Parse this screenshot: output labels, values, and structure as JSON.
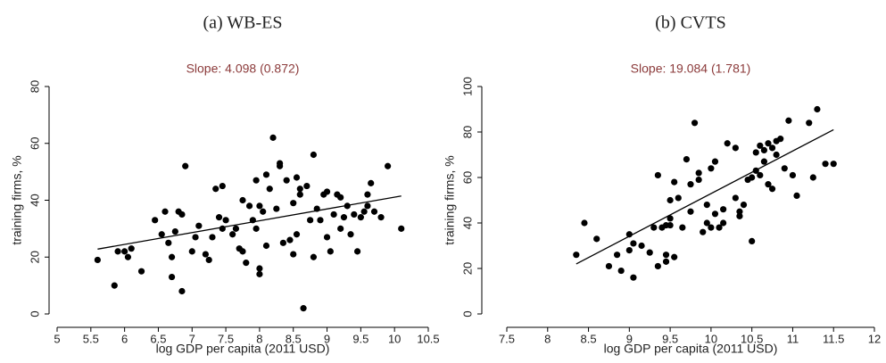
{
  "chart_data": [
    {
      "type": "scatter",
      "title": "(a) WB-ES",
      "subtitle": "Slope: 4.098 (0.872)",
      "xlabel": "log GDP per capita (2011 USD)",
      "ylabel": "training firms, %",
      "color": "#000000",
      "xlim": [
        5,
        10.5
      ],
      "ylim": [
        0,
        80
      ],
      "xticks": [
        5,
        5.5,
        6,
        6.5,
        7,
        7.5,
        8,
        8.5,
        9,
        9.5,
        10,
        10.5
      ],
      "yticks": [
        0,
        20,
        40,
        60,
        80
      ],
      "x": [
        5.6,
        5.85,
        5.9,
        6.0,
        6.05,
        6.1,
        6.25,
        6.45,
        6.55,
        6.6,
        6.65,
        6.7,
        6.7,
        6.75,
        6.8,
        6.85,
        6.85,
        6.9,
        7.0,
        7.05,
        7.1,
        7.2,
        7.25,
        7.3,
        7.35,
        7.4,
        7.45,
        7.45,
        7.5,
        7.6,
        7.65,
        7.7,
        7.75,
        7.75,
        7.8,
        7.85,
        7.9,
        7.95,
        7.95,
        8.0,
        8.0,
        8.0,
        8.05,
        8.1,
        8.1,
        8.15,
        8.2,
        8.25,
        8.3,
        8.3,
        8.35,
        8.4,
        8.45,
        8.5,
        8.5,
        8.55,
        8.55,
        8.6,
        8.6,
        8.65,
        8.7,
        8.75,
        8.8,
        8.8,
        8.85,
        8.9,
        8.95,
        9.0,
        9.0,
        9.05,
        9.1,
        9.15,
        9.2,
        9.2,
        9.25,
        9.3,
        9.35,
        9.4,
        9.45,
        9.5,
        9.55,
        9.6,
        9.6,
        9.65,
        9.7,
        9.8,
        9.9,
        10.1
      ],
      "y": [
        19,
        10,
        22,
        22,
        20,
        23,
        15,
        33,
        28,
        36,
        25,
        13,
        20,
        29,
        36,
        8,
        35,
        52,
        22,
        27,
        31,
        21,
        19,
        27,
        44,
        34,
        30,
        45,
        33,
        28,
        30,
        23,
        40,
        22,
        18,
        38,
        33,
        30,
        47,
        38,
        16,
        14,
        36,
        24,
        49,
        44,
        62,
        37,
        53,
        52,
        25,
        47,
        26,
        21,
        39,
        28,
        48,
        42,
        44,
        2,
        45,
        33,
        20,
        56,
        37,
        33,
        42,
        43,
        27,
        22,
        35,
        42,
        41,
        30,
        34,
        38,
        28,
        35,
        22,
        34,
        36,
        38,
        42,
        46,
        36,
        34,
        52,
        30
      ],
      "fit": {
        "x": [
          5.6,
          10.1
        ],
        "y": [
          22.8,
          41.5
        ]
      }
    },
    {
      "type": "scatter",
      "title": "(b) CVTS",
      "subtitle": "Slope: 19.084 (1.781)",
      "xlabel": "log GDP per capita (2011 USD)",
      "ylabel": "training firms, %",
      "color": "#000000",
      "xlim": [
        7.5,
        12
      ],
      "ylim": [
        0,
        100
      ],
      "xticks": [
        7.5,
        8,
        8.5,
        9,
        9.5,
        10,
        10.5,
        11,
        11.5,
        12
      ],
      "yticks": [
        0,
        20,
        40,
        60,
        80,
        100
      ],
      "x": [
        8.35,
        8.45,
        8.6,
        8.75,
        8.85,
        8.9,
        9.0,
        9.0,
        9.05,
        9.05,
        9.15,
        9.25,
        9.3,
        9.35,
        9.35,
        9.4,
        9.45,
        9.45,
        9.45,
        9.5,
        9.5,
        9.5,
        9.55,
        9.55,
        9.6,
        9.65,
        9.7,
        9.75,
        9.75,
        9.8,
        9.85,
        9.85,
        9.9,
        9.95,
        9.95,
        10.0,
        10.0,
        10.05,
        10.05,
        10.1,
        10.15,
        10.15,
        10.2,
        10.3,
        10.3,
        10.35,
        10.35,
        10.4,
        10.45,
        10.5,
        10.5,
        10.55,
        10.55,
        10.6,
        10.6,
        10.65,
        10.65,
        10.7,
        10.7,
        10.75,
        10.75,
        10.8,
        10.8,
        10.85,
        10.9,
        10.95,
        11.0,
        11.05,
        11.2,
        11.25,
        11.3,
        11.4,
        11.5
      ],
      "y": [
        26,
        40,
        33,
        21,
        26,
        19,
        28,
        35,
        16,
        31,
        30,
        27,
        38,
        21,
        61,
        38,
        23,
        26,
        39,
        42,
        50,
        39,
        58,
        25,
        51,
        38,
        68,
        57,
        45,
        84,
        59,
        62,
        36,
        48,
        40,
        38,
        64,
        67,
        44,
        38,
        46,
        40,
        75,
        51,
        73,
        45,
        43,
        48,
        59,
        32,
        60,
        63,
        71,
        74,
        61,
        67,
        72,
        75,
        57,
        73,
        55,
        76,
        70,
        77,
        64,
        85,
        61,
        52,
        84,
        60,
        90,
        66,
        66
      ],
      "fit": {
        "x": [
          8.35,
          11.5
        ],
        "y": [
          22,
          81
        ]
      }
    }
  ]
}
